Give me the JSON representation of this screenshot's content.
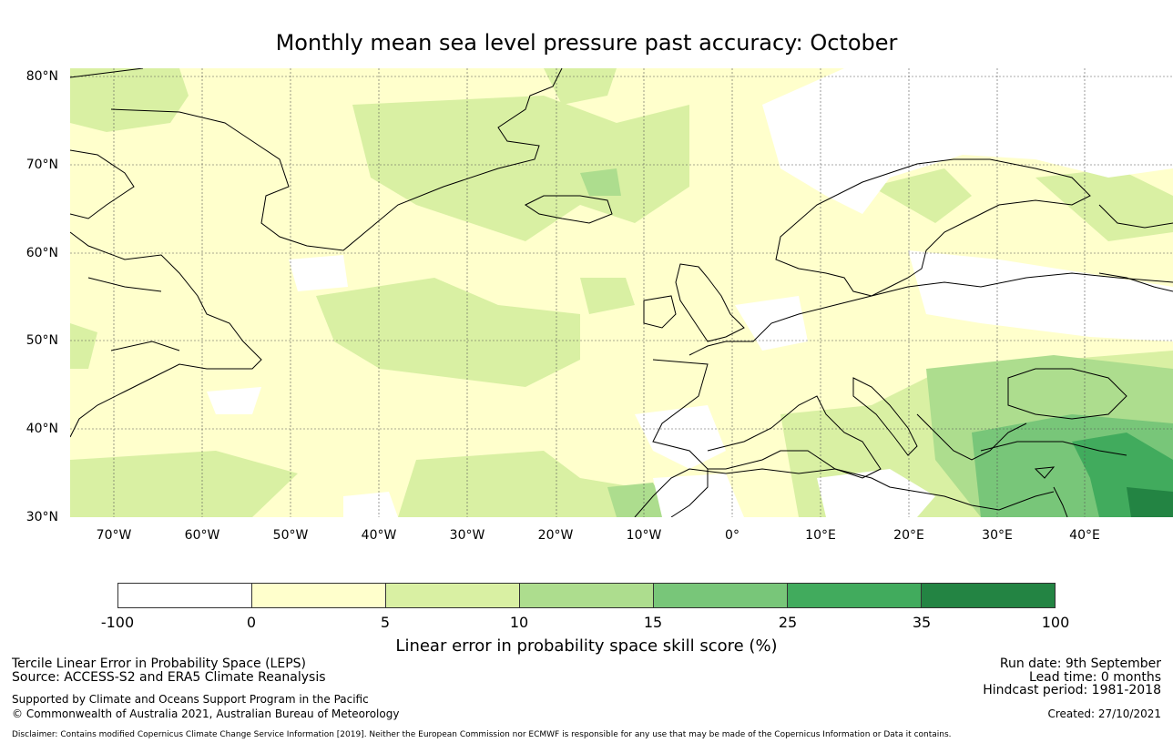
{
  "title": "Monthly mean sea level pressure past accuracy: October",
  "map": {
    "lat_labels": [
      "80°N",
      "70°N",
      "60°N",
      "50°N",
      "40°N",
      "30°N"
    ],
    "lon_labels": [
      "70°W",
      "60°W",
      "50°W",
      "40°W",
      "30°W",
      "20°W",
      "10°W",
      "0°",
      "10°E",
      "20°E",
      "30°E",
      "40°E"
    ],
    "extent": {
      "lon_min": -75,
      "lon_max": 50,
      "lat_min": 30,
      "lat_max": 81
    },
    "gridlines": true
  },
  "colorbar": {
    "colors": [
      "#ffffff",
      "#ffffcc",
      "#d9f0a3",
      "#addd8e",
      "#78c679",
      "#41ab5d",
      "#238443"
    ],
    "ticks": [
      "-100",
      "0",
      "5",
      "10",
      "15",
      "25",
      "35",
      "100"
    ],
    "label": "Linear error in probability space skill score (%)"
  },
  "footer": {
    "method": "Tercile Linear Error in Probability Space (LEPS)",
    "source": "Source: ACCESS-S2 and ERA5 Climate Reanalysis",
    "support": "Supported by Climate and Oceans Support Program in the Pacific",
    "copyright": "© Commonwealth of Australia 2021, Australian Bureau of Meteorology",
    "run_date": "Run date: 9th September",
    "lead_time": "Lead time: 0 months",
    "hindcast": "Hindcast period: 1981-2018",
    "created": "Created: 27/10/2021",
    "disclaimer": "Disclaimer: Contains modified Copernicus Climate Change Service Information [2019]. Neither the European Commission nor ECMWF is responsible for any use that may be made of the Copernicus Information or Data it contains."
  }
}
